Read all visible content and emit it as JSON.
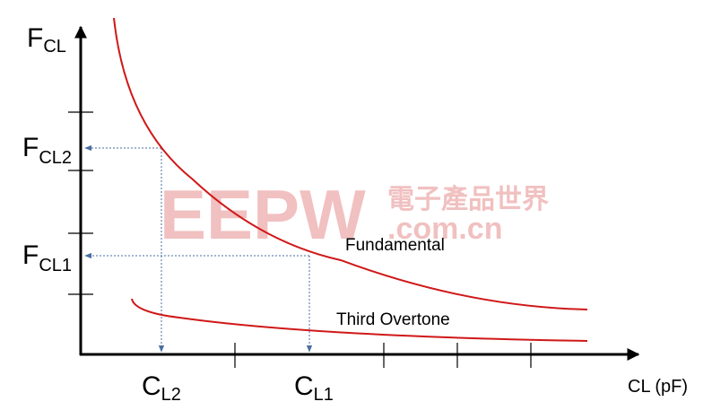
{
  "y_axis": {
    "main": "F",
    "sub": "CL"
  },
  "y_marks": [
    {
      "main": "F",
      "sub": "CL2"
    },
    {
      "main": "F",
      "sub": "CL1"
    }
  ],
  "x_marks": [
    {
      "main": "C",
      "sub": "L2"
    },
    {
      "main": "C",
      "sub": "L1"
    }
  ],
  "x_axis": {
    "label": "CL (pF)"
  },
  "curves": [
    "Fundamental",
    "Third Overtone"
  ],
  "watermark": {
    "logo": "EEPW",
    "chinese": "電子產品世界",
    "domain": ".com.cn"
  }
}
